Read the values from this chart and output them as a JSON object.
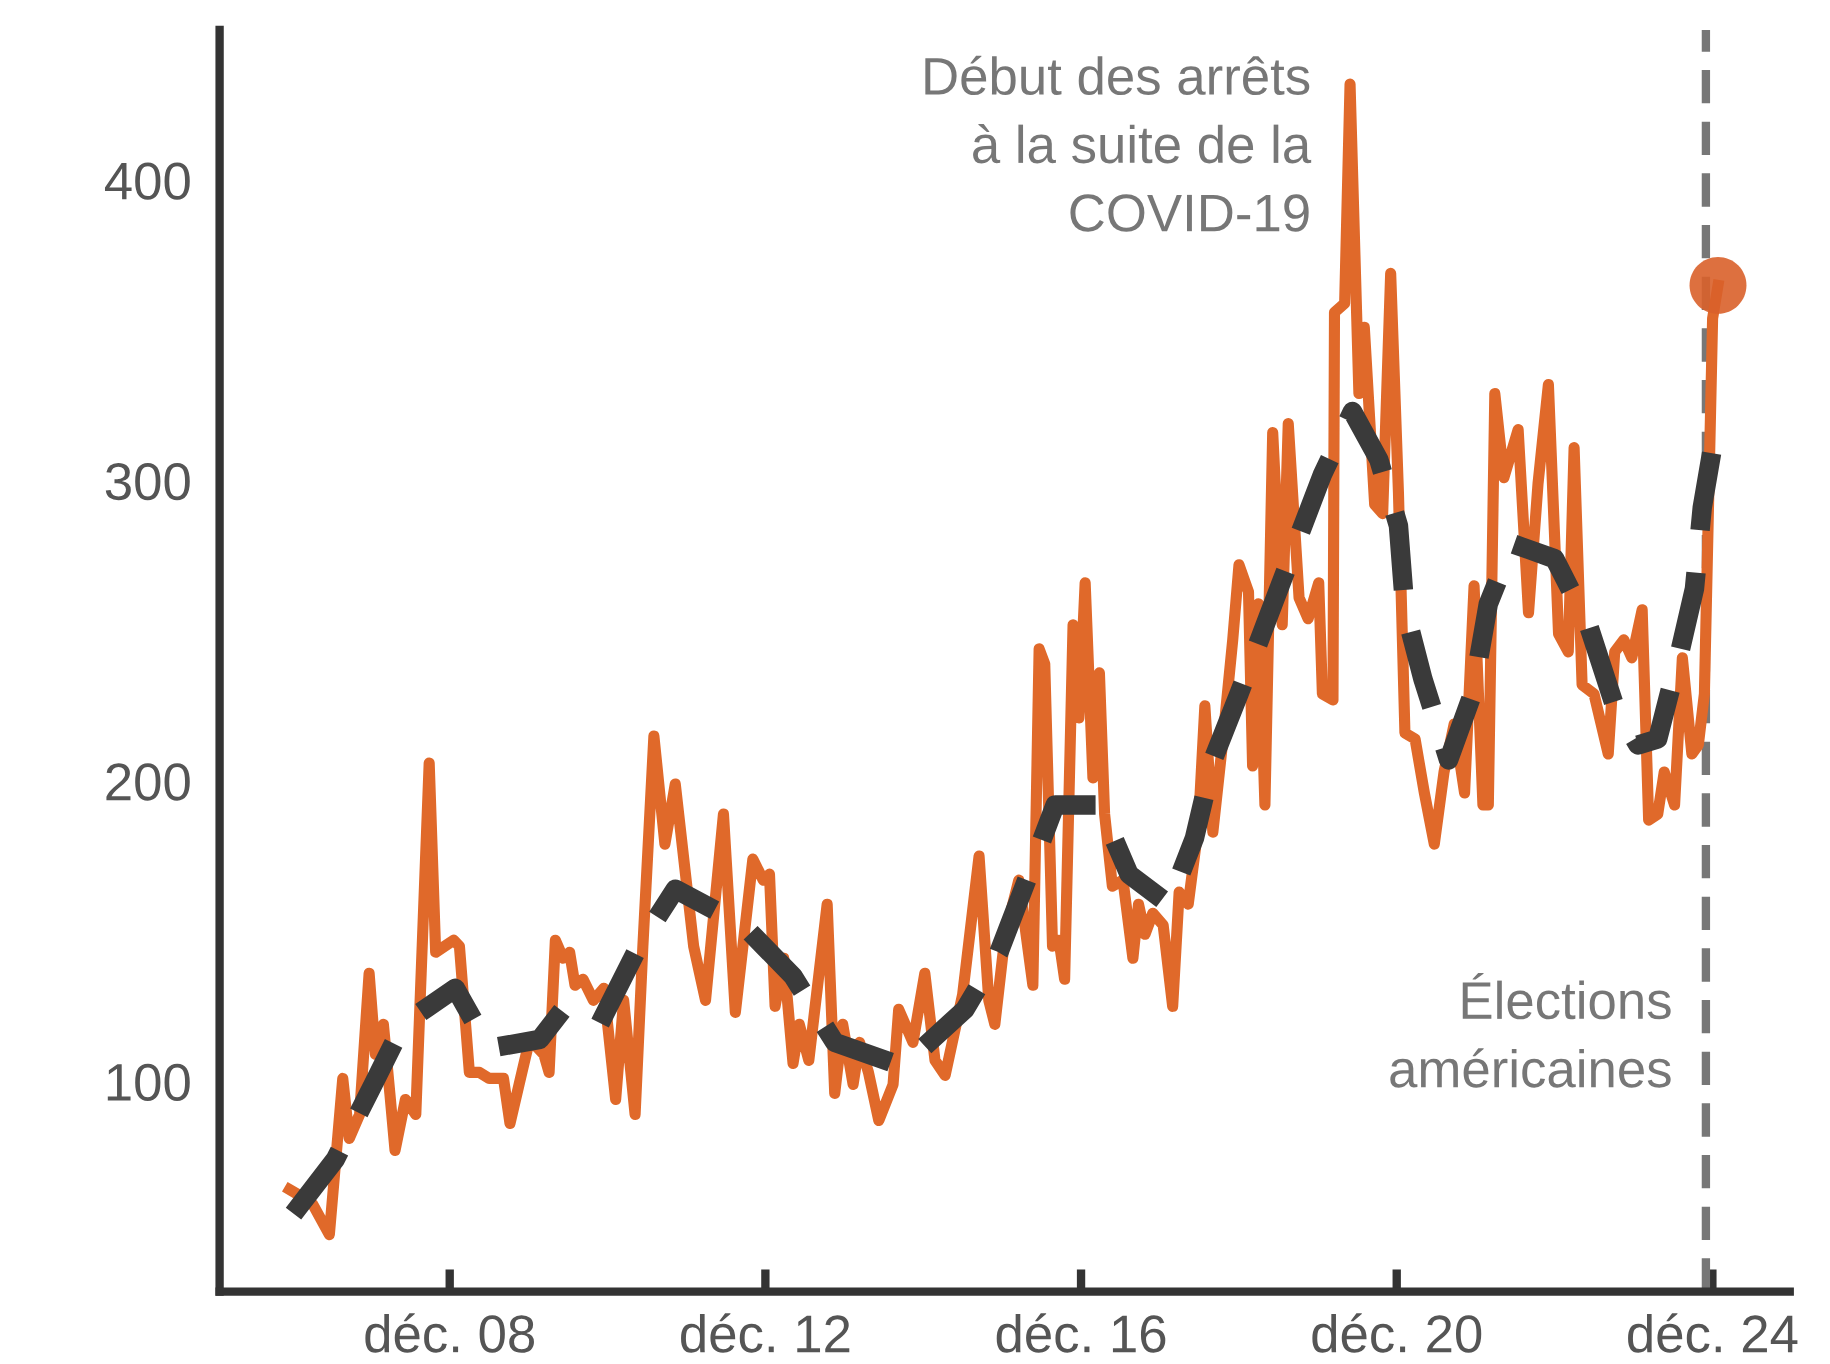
{
  "chart_data": {
    "type": "line",
    "xlim": [
      "2006-01-01",
      "2025-11-24"
    ],
    "ylim": [
      30,
      450
    ],
    "xticks": [
      {
        "value": "2008-12-01",
        "label": "déc. 08"
      },
      {
        "value": "2012-12-01",
        "label": "déc. 12"
      },
      {
        "value": "2016-12-01",
        "label": "déc. 16"
      },
      {
        "value": "2020-12-01",
        "label": "déc. 20"
      },
      {
        "value": "2024-12-01",
        "label": "déc. 24"
      }
    ],
    "yticks": [
      100,
      200,
      300,
      400
    ],
    "series": [
      {
        "type": "line",
        "color": "#e0692a",
        "line_style": "solid",
        "x": [
          "2006-11-21",
          "2007-01-08",
          "2007-03-09",
          "2007-05-24",
          "2007-07-25",
          "2007-08-24",
          "2007-10-11",
          "2007-11-24",
          "2007-12-23",
          "2008-01-29",
          "2008-02-28",
          "2008-03-23",
          "2008-05-10",
          "2008-06-27",
          "2008-08-28",
          "2008-09-27",
          "2008-12-20",
          "2009-01-15",
          "2009-03-02",
          "2009-04-18",
          "2009-06-02",
          "2009-08-07",
          "2009-09-06",
          "2009-10-18",
          "2009-12-06",
          "2010-02-10",
          "2010-03-06",
          "2010-04-04",
          "2010-05-10",
          "2010-06-09",
          "2010-07-04",
          "2010-08-10",
          "2010-09-27",
          "2010-11-14",
          "2011-01-08",
          "2011-02-14",
          "2011-04-08",
          "2011-05-14",
          "2011-07-04",
          "2011-08-24",
          "2011-10-11",
          "2012-01-04",
          "2012-02-28",
          "2012-05-21",
          "2012-07-15",
          "2012-10-04",
          "2012-11-21",
          "2012-12-20",
          "2013-01-15",
          "2013-02-24",
          "2013-04-08",
          "2013-05-07",
          "2013-06-20",
          "2013-09-13",
          "2013-10-18",
          "2013-11-24",
          "2014-01-11",
          "2014-02-10",
          "2014-03-23",
          "2014-05-10",
          "2014-07-15",
          "2014-08-10",
          "2014-10-15",
          "2014-12-09",
          "2015-01-25",
          "2015-03-13",
          "2015-06-02",
          "2015-08-17",
          "2015-10-01",
          "2015-10-29",
          "2015-12-16",
          "2016-02-17",
          "2016-04-22",
          "2016-05-21",
          "2016-06-16",
          "2016-07-22",
          "2016-08-21",
          "2016-09-16",
          "2016-10-25",
          "2016-11-21",
          "2016-12-20",
          "2017-01-25",
          "2017-02-24",
          "2017-03-20",
          "2017-04-25",
          "2017-06-13",
          "2017-07-29",
          "2017-08-24",
          "2017-09-23",
          "2017-10-29",
          "2017-12-16",
          "2018-01-29",
          "2018-02-28",
          "2018-04-11",
          "2018-05-28",
          "2018-06-27",
          "2018-08-03",
          "2018-09-16",
          "2018-11-03",
          "2018-12-02",
          "2019-01-15",
          "2019-02-03",
          "2019-03-02",
          "2019-04-01",
          "2019-05-07",
          "2019-06-20",
          "2019-07-18",
          "2019-09-06",
          "2019-10-18",
          "2019-12-06",
          "2019-12-23",
          "2020-02-10",
          "2020-02-17",
          "2020-04-04",
          "2020-04-29",
          "2020-06-09",
          "2020-07-04",
          "2020-08-21",
          "2020-09-27",
          "2020-11-03",
          "2020-12-09",
          "2021-01-08",
          "2021-02-24",
          "2021-04-08",
          "2021-05-24",
          "2021-07-08",
          "2021-08-24",
          "2021-10-11",
          "2021-11-24",
          "2022-01-04",
          "2022-01-29",
          "2022-02-28",
          "2022-04-11",
          "2022-06-16",
          "2022-08-03",
          "2022-09-16",
          "2022-11-03",
          "2022-12-20",
          "2023-02-03",
          "2023-03-02",
          "2023-04-08",
          "2023-06-02",
          "2023-08-07",
          "2023-09-06",
          "2023-10-18",
          "2023-11-24",
          "2024-01-11",
          "2024-02-10",
          "2024-03-23",
          "2024-04-22",
          "2024-06-09",
          "2024-07-15",
          "2024-08-28",
          "2024-09-27",
          "2024-10-25",
          "2024-12-02",
          "2024-12-27"
        ],
        "values": [
          64,
          62,
          59,
          49,
          101,
          81,
          89,
          136,
          109,
          119,
          96,
          77,
          94,
          89,
          206,
          143,
          147,
          145,
          103,
          103,
          101,
          101,
          86,
          99,
          114,
          109,
          103,
          147,
          141,
          143,
          132,
          134,
          127,
          131,
          94,
          127,
          89,
          145,
          215,
          179,
          199,
          145,
          127,
          189,
          123,
          174,
          167,
          169,
          125,
          141,
          106,
          119,
          107,
          159,
          96,
          119,
          99,
          113,
          103,
          87,
          99,
          124,
          113,
          136,
          107,
          102,
          129,
          175,
          127,
          119,
          149,
          167,
          132,
          244,
          239,
          145,
          147,
          134,
          252,
          221,
          266,
          201,
          236,
          189,
          165,
          167,
          141,
          159,
          149,
          156,
          152,
          125,
          163,
          159,
          185,
          225,
          183,
          212,
          247,
          272,
          263,
          205,
          259,
          192,
          316,
          252,
          319,
          261,
          254,
          266,
          229,
          227,
          356,
          359,
          432,
          329,
          351,
          292,
          289,
          369,
          296,
          216,
          214,
          196,
          179,
          203,
          219,
          196,
          265,
          192,
          192,
          329,
          301,
          317,
          256,
          299,
          332,
          249,
          243,
          311,
          232,
          229,
          209,
          243,
          247,
          241,
          257,
          187,
          189,
          203,
          192,
          241,
          209,
          212,
          229,
          354,
          365
        ]
      },
      {
        "type": "line",
        "color": "#3a3a3a",
        "line_style": "dashed",
        "x": [
          "2006-12-09",
          "2007-06-20",
          "2007-12-13",
          "2008-04-29",
          "2008-12-27",
          "2009-06-02",
          "2010-01-22",
          "2010-05-10",
          "2010-10-25",
          "2011-04-25",
          "2011-10-11",
          "2012-08-21",
          "2013-04-08",
          "2013-10-18",
          "2014-08-28",
          "2015-06-13",
          "2015-11-17",
          "2016-04-04",
          "2016-08-03",
          "2017-02-24",
          "2017-07-11",
          "2018-01-11",
          "2018-05-10",
          "2018-08-03",
          "2018-12-02",
          "2019-04-18",
          "2019-12-23",
          "2020-05-10",
          "2020-09-09",
          "2020-12-09",
          "2021-01-08",
          "2021-04-01",
          "2021-07-29",
          "2021-11-17",
          "2022-01-29",
          "2022-05-21",
          "2022-12-02",
          "2023-05-07",
          "2023-09-06",
          "2023-12-23",
          "2024-03-23",
          "2024-06-27",
          "2024-09-09",
          "2024-10-15",
          "2024-12-09"
        ],
        "values": [
          56,
          74,
          99,
          119,
          131,
          111,
          114,
          124,
          119,
          145,
          164,
          152,
          135,
          113,
          105,
          124,
          143,
          169,
          192,
          192,
          169,
          159,
          181,
          207,
          229,
          255,
          302,
          323,
          307,
          285,
          257,
          234,
          207,
          229,
          259,
          279,
          274,
          252,
          225,
          212,
          214,
          241,
          264,
          291,
          314
        ]
      },
      {
        "type": "scatter",
        "color": "#d9612a",
        "marker": "circle",
        "x": [
          "2024-12-27"
        ],
        "values": [
          365
        ]
      }
    ],
    "annotations": [
      {
        "text": "Début des arrêts\nà la suite de la\nCOVID-19",
        "x": "2020-04-29",
        "y": 432
      }
    ],
    "ref_lines": [
      {
        "axis": "x",
        "value": "2024-11",
        "label": "Élections\naméricaines",
        "color": "#777777",
        "line_style": "dashed"
      }
    ]
  }
}
